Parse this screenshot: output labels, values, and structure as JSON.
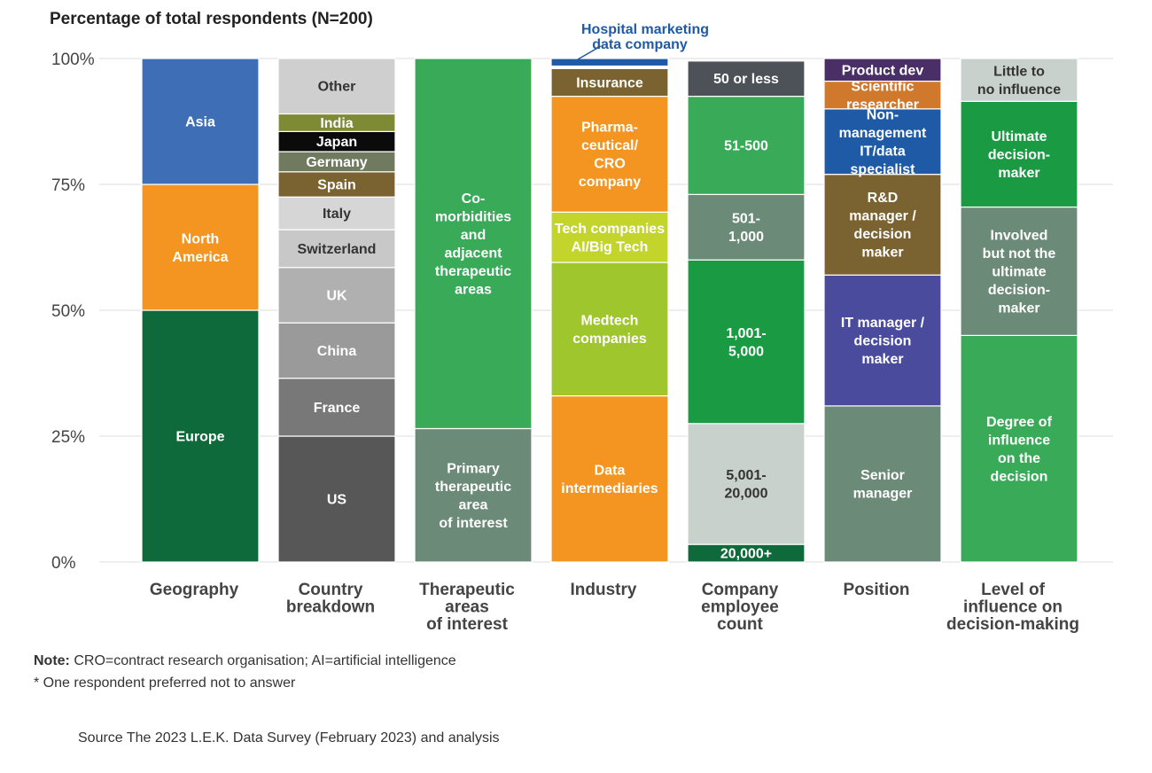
{
  "chart_data": {
    "type": "bar",
    "stacked": true,
    "title": "Percentage of total respondents (N=200)",
    "y_ticks": [
      "0%",
      "25%",
      "50%",
      "75%",
      "100%"
    ],
    "ylim": [
      0,
      100
    ],
    "columns": [
      {
        "category": [
          "Geography"
        ],
        "segments": [
          {
            "label": [
              "Europe"
            ],
            "value": 50,
            "color": "#0e6a3b",
            "text_color": "#ffffff"
          },
          {
            "label": [
              "North",
              "America"
            ],
            "value": 25,
            "color": "#f39520",
            "text_color": "#ffffff"
          },
          {
            "label": [
              "Asia"
            ],
            "value": 25,
            "color": "#3e6fb6",
            "text_color": "#ffffff"
          }
        ]
      },
      {
        "category": [
          "Country",
          "breakdown"
        ],
        "segments": [
          {
            "label": [
              "US"
            ],
            "value": 25,
            "color": "#575757",
            "text_color": "#ffffff"
          },
          {
            "label": [
              "France"
            ],
            "value": 11.5,
            "color": "#787878",
            "text_color": "#ffffff"
          },
          {
            "label": [
              "China"
            ],
            "value": 11,
            "color": "#9a9a9a",
            "text_color": "#ffffff"
          },
          {
            "label": [
              "UK"
            ],
            "value": 11,
            "color": "#b0b0b0",
            "text_color": "#ffffff"
          },
          {
            "label": [
              "Switzerland"
            ],
            "value": 7.5,
            "color": "#c8c8c8",
            "text_color": "#333333"
          },
          {
            "label": [
              "Italy"
            ],
            "value": 6.5,
            "color": "#d6d6d6",
            "text_color": "#333333"
          },
          {
            "label": [
              "Spain"
            ],
            "value": 5,
            "color": "#7b6231",
            "text_color": "#ffffff"
          },
          {
            "label": [
              "Germany"
            ],
            "value": 4,
            "color": "#707a5e",
            "text_color": "#ffffff"
          },
          {
            "label": [
              "Japan"
            ],
            "value": 4,
            "color": "#0b0b0b",
            "text_color": "#ffffff"
          },
          {
            "label": [
              "India"
            ],
            "value": 3.5,
            "color": "#7f8a34",
            "text_color": "#ffffff"
          },
          {
            "label": [
              "Other"
            ],
            "value": 11,
            "color": "#cfcfcf",
            "text_color": "#333333"
          }
        ]
      },
      {
        "category": [
          "Therapeutic",
          "areas",
          "of interest"
        ],
        "segments": [
          {
            "label": [
              "Primary",
              "therapeutic",
              "area",
              "of interest"
            ],
            "value": 26.5,
            "color": "#6c8a78",
            "text_color": "#ffffff"
          },
          {
            "label": [
              "Co-",
              "morbidities",
              "and",
              "adjacent",
              "therapeutic",
              "areas"
            ],
            "value": 73.5,
            "color": "#38aa58",
            "text_color": "#ffffff"
          }
        ]
      },
      {
        "category": [
          "Industry"
        ],
        "segments": [
          {
            "label": [
              "Data",
              "intermediaries"
            ],
            "value": 33,
            "color": "#f39520",
            "text_color": "#ffffff"
          },
          {
            "label": [
              "Medtech",
              "companies"
            ],
            "value": 26.5,
            "color": "#9fc62c",
            "text_color": "#ffffff"
          },
          {
            "label": [
              "Tech companies",
              "AI/Big Tech"
            ],
            "value": 10,
            "color": "#c3d42d",
            "text_color": "#ffffff"
          },
          {
            "label": [
              "Pharma-",
              "ceutical/",
              "CRO",
              "company"
            ],
            "value": 23,
            "color": "#f39520",
            "text_color": "#ffffff"
          },
          {
            "label": [
              "Insurance"
            ],
            "value": 5.5,
            "color": "#7b6231",
            "text_color": "#ffffff"
          },
          {
            "label": [],
            "value": 0.5,
            "color": "#ffffff",
            "text_color": "#ffffff"
          },
          {
            "label": [],
            "value": 1.5,
            "color": "#1f5aa6",
            "text_color": "#ffffff"
          }
        ]
      },
      {
        "category": [
          "Company",
          "employee",
          "count"
        ],
        "segments": [
          {
            "label": [
              "20,000+"
            ],
            "value": 3.5,
            "color": "#0e6a3b",
            "text_color": "#ffffff"
          },
          {
            "label": [
              "5,001-",
              "20,000"
            ],
            "value": 24,
            "color": "#c9d1cc",
            "text_color": "#333333"
          },
          {
            "label": [
              "1,001-",
              "5,000"
            ],
            "value": 32.5,
            "color": "#199a43",
            "text_color": "#ffffff"
          },
          {
            "label": [
              "501-",
              "1,000"
            ],
            "value": 13,
            "color": "#6c8a78",
            "text_color": "#ffffff"
          },
          {
            "label": [
              "51-500"
            ],
            "value": 19.5,
            "color": "#38aa58",
            "text_color": "#ffffff"
          },
          {
            "label": [
              "50 or less"
            ],
            "value": 7,
            "color": "#4d5258",
            "text_color": "#ffffff"
          }
        ]
      },
      {
        "category": [
          "Position"
        ],
        "segments": [
          {
            "label": [
              "Senior",
              "manager"
            ],
            "value": 31,
            "color": "#6c8a78",
            "text_color": "#ffffff"
          },
          {
            "label": [
              "IT manager /",
              "decision",
              "maker"
            ],
            "value": 26,
            "color": "#4b4b9e",
            "text_color": "#ffffff"
          },
          {
            "label": [
              "R&D",
              "manager /",
              "decision",
              "maker"
            ],
            "value": 20,
            "color": "#7b6231",
            "text_color": "#ffffff"
          },
          {
            "label": [
              "Non-",
              "management",
              "IT/data",
              "specialist"
            ],
            "value": 13,
            "color": "#1f5aa6",
            "text_color": "#ffffff"
          },
          {
            "label": [
              "Scientific",
              "researcher"
            ],
            "value": 5.5,
            "color": "#d0782c",
            "text_color": "#ffffff"
          },
          {
            "label": [
              "Product dev"
            ],
            "value": 4.5,
            "color": "#4a2e66",
            "text_color": "#ffffff"
          }
        ]
      },
      {
        "category": [
          "Level of",
          "influence on",
          "decision-making"
        ],
        "segments": [
          {
            "label": [
              "Degree of",
              "influence",
              "on the",
              "decision"
            ],
            "value": 45,
            "color": "#38aa58",
            "text_color": "#ffffff"
          },
          {
            "label": [
              "Involved",
              "but not the",
              "ultimate",
              "decision-",
              "maker"
            ],
            "value": 25.5,
            "color": "#6c8a78",
            "text_color": "#ffffff"
          },
          {
            "label": [
              "Ultimate",
              "decision-",
              "maker"
            ],
            "value": 21,
            "color": "#199a43",
            "text_color": "#ffffff"
          },
          {
            "label": [
              "Little to",
              "no influence"
            ],
            "value": 8.5,
            "color": "#c9d1cc",
            "text_color": "#333333"
          }
        ]
      }
    ],
    "callout": {
      "label": [
        "Hospital marketing",
        "data company"
      ],
      "column": "Industry",
      "segment_index": 6
    }
  },
  "notes": {
    "note_prefix": "Note:",
    "note_text": "CRO=contract research organisation; AI=artificial intelligence",
    "footnote": "* One respondent preferred not to answer",
    "source": "Source The 2023 L.E.K. Data Survey  (February 2023) and analysis"
  },
  "colors": {
    "grid": "#dddddd",
    "axis_text": "#444444",
    "callout": "#1f5aa6"
  }
}
